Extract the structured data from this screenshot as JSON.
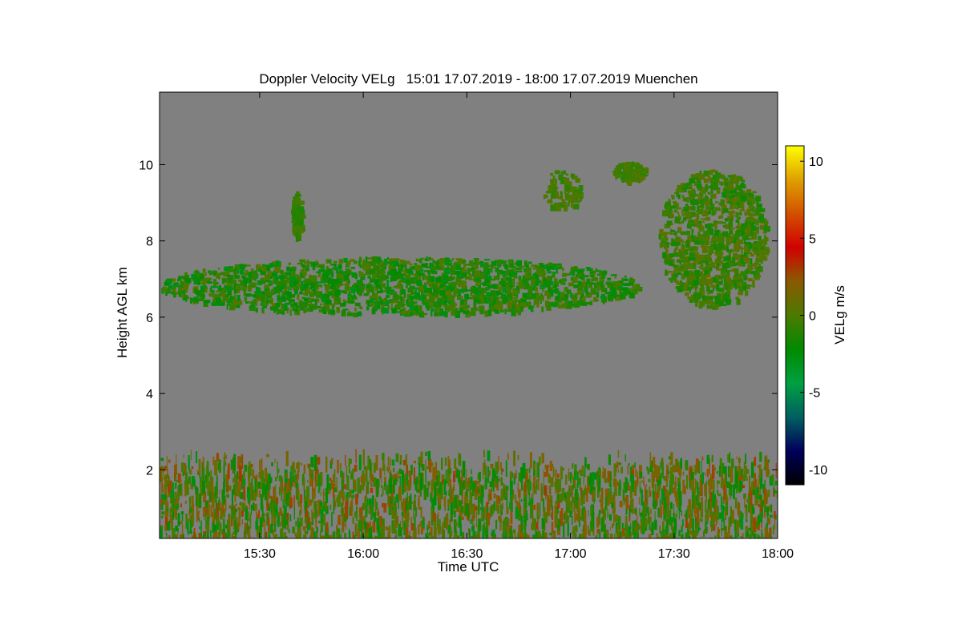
{
  "chart_data": {
    "type": "heatmap",
    "title": "Doppler Velocity VELg   15:01 17.07.2019 - 18:00 17.07.2019 Muenchen",
    "xlabel": "Time UTC",
    "ylabel": "Height AGL km",
    "x_range": [
      "15:01",
      "18:00"
    ],
    "x_ticks": [
      "15:30",
      "16:00",
      "16:30",
      "17:00",
      "17:30",
      "18:00"
    ],
    "ylim": [
      0.2,
      11.9
    ],
    "y_ticks": [
      2,
      4,
      6,
      8,
      10
    ],
    "background_color": "#808080",
    "colorbar": {
      "label": "VELg m/s",
      "range": [
        -11,
        11
      ],
      "ticks": [
        10,
        5,
        0,
        -5,
        -10
      ],
      "tick_labels": [
        "10",
        "5",
        "0",
        "-5",
        "-10"
      ],
      "colors": [
        "#000000",
        "#00005a",
        "#006060",
        "#00a040",
        "#008a00",
        "#4c7a00",
        "#8a5a00",
        "#d10000",
        "#d25000",
        "#e0a000",
        "#ffff00"
      ]
    },
    "features": [
      {
        "region": "boundary layer",
        "time_range": [
          "15:01",
          "18:00"
        ],
        "height_range_km": [
          0.2,
          2.6
        ],
        "velocity_range": [
          -3,
          3
        ]
      },
      {
        "region": "cloud layer",
        "time_range": [
          "15:01",
          "17:20"
        ],
        "height_range_km": [
          6.1,
          7.6
        ],
        "velocity_range": [
          -3,
          0.5
        ]
      },
      {
        "region": "fall streak",
        "time_range": [
          "15:39",
          "15:42"
        ],
        "height_range_km": [
          8.1,
          9.3
        ],
        "velocity_range": [
          -1.5,
          0
        ]
      },
      {
        "region": "upper cloud",
        "time_range": [
          "16:52",
          "17:03"
        ],
        "height_range_km": [
          8.8,
          9.9
        ],
        "velocity_range": [
          -1,
          0.5
        ]
      },
      {
        "region": "upper cloud",
        "time_range": [
          "17:12",
          "17:22"
        ],
        "height_range_km": [
          9.6,
          10.1
        ],
        "velocity_range": [
          -1,
          0.5
        ]
      },
      {
        "region": "deep cloud",
        "time_range": [
          "17:25",
          "17:57"
        ],
        "height_range_km": [
          6.3,
          9.9
        ],
        "velocity_range": [
          -2,
          1
        ]
      }
    ]
  }
}
